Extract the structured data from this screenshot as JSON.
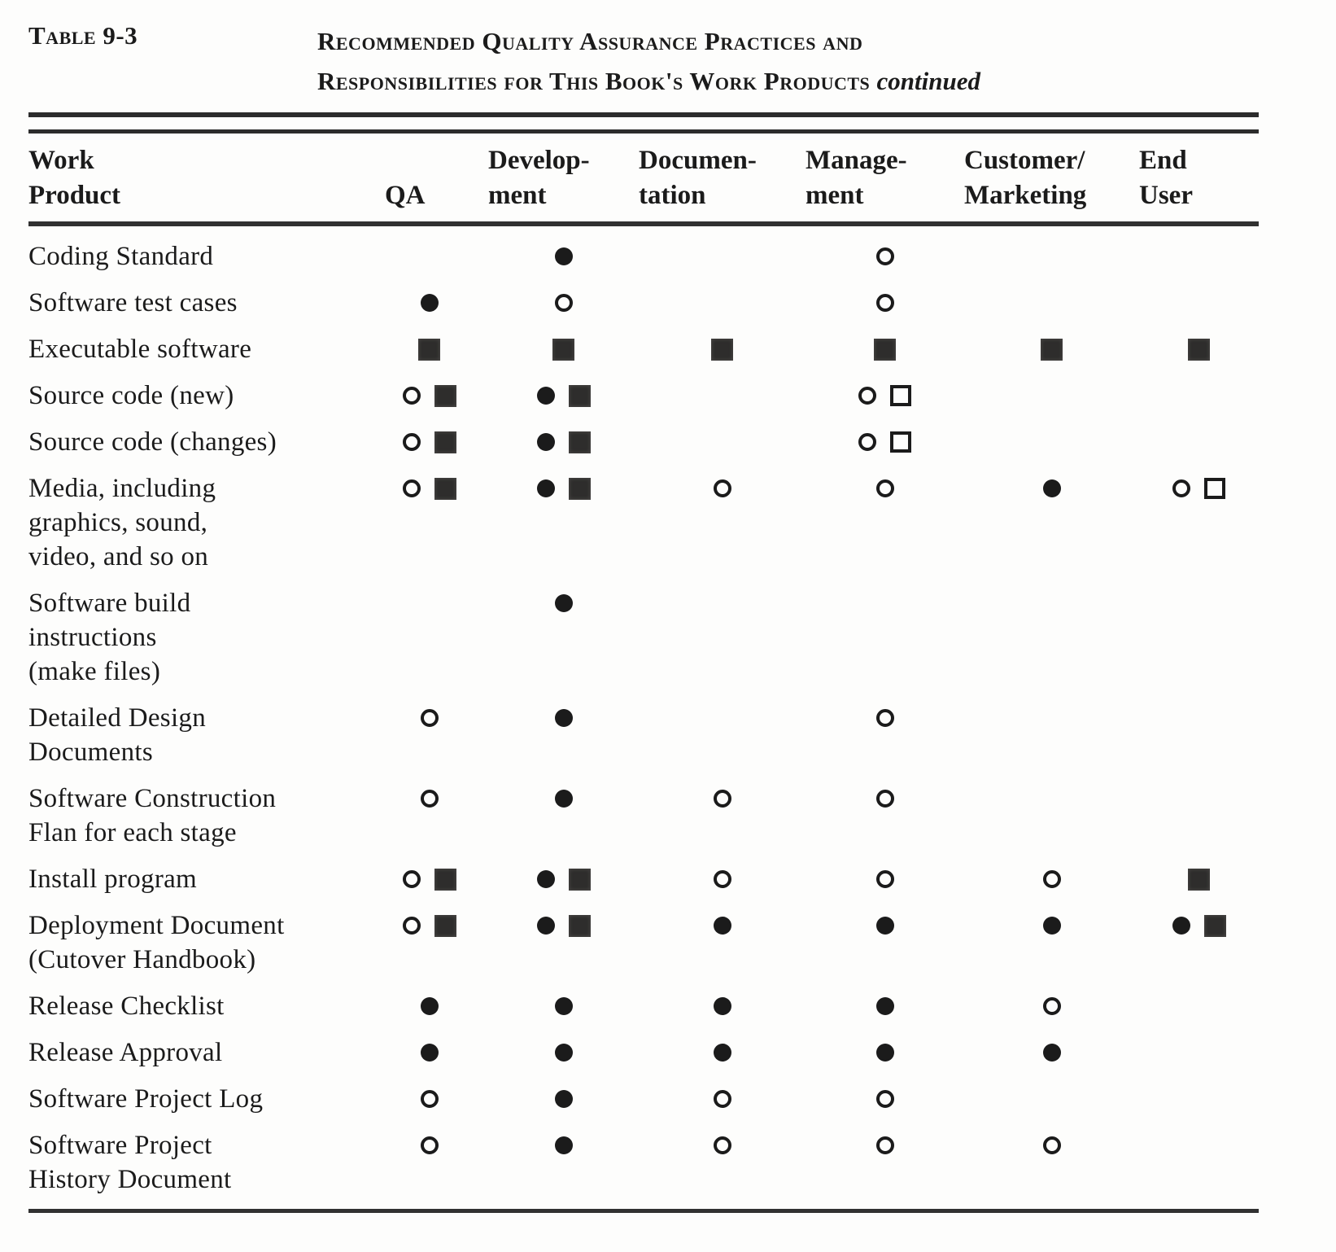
{
  "colors": {
    "ink": "#1b1b1b",
    "paper": "#fdfdfc"
  },
  "caption": {
    "label": "Table 9-3",
    "title_line1": "Recommended Quality Assurance Practices and",
    "title_line2": "Responsibilities for This Book's Work Products",
    "continued": "continued"
  },
  "table": {
    "header_columns": [
      {
        "line1": "Work",
        "line2": "Product",
        "id": "work-product"
      },
      {
        "line1": "",
        "line2": "QA",
        "id": "qa"
      },
      {
        "line1": "Develop-",
        "line2": "ment",
        "id": "development"
      },
      {
        "line1": "Documen-",
        "line2": "tation",
        "id": "documentation"
      },
      {
        "line1": "Manage-",
        "line2": "ment",
        "id": "management"
      },
      {
        "line1": "Customer/",
        "line2": "Marketing",
        "id": "customer-marketing"
      },
      {
        "line1": "End",
        "line2": "User",
        "id": "end-user"
      }
    ],
    "symbol_glyphs": [
      "filled-circle",
      "open-circle",
      "filled-square",
      "open-square"
    ],
    "rows": [
      {
        "label_lines": [
          "Coding Standard"
        ],
        "cells": [
          [],
          [
            "filled-circle"
          ],
          [],
          [
            "open-circle"
          ],
          [],
          []
        ]
      },
      {
        "label_lines": [
          "Software test cases"
        ],
        "cells": [
          [
            "filled-circle"
          ],
          [
            "open-circle"
          ],
          [],
          [
            "open-circle"
          ],
          [],
          []
        ]
      },
      {
        "label_lines": [
          "Executable software"
        ],
        "cells": [
          [
            "filled-square"
          ],
          [
            "filled-square"
          ],
          [
            "filled-square"
          ],
          [
            "filled-square"
          ],
          [
            "filled-square"
          ],
          [
            "filled-square"
          ]
        ]
      },
      {
        "label_lines": [
          "Source code (new)"
        ],
        "cells": [
          [
            "open-circle",
            "filled-square"
          ],
          [
            "filled-circle",
            "filled-square"
          ],
          [],
          [
            "open-circle",
            "open-square"
          ],
          [],
          []
        ]
      },
      {
        "label_lines": [
          "Source code (changes)"
        ],
        "cells": [
          [
            "open-circle",
            "filled-square"
          ],
          [
            "filled-circle",
            "filled-square"
          ],
          [],
          [
            "open-circle",
            "open-square"
          ],
          [],
          []
        ]
      },
      {
        "label_lines": [
          "Media, including",
          "graphics, sound,",
          "video, and so on"
        ],
        "cells": [
          [
            "open-circle",
            "filled-square"
          ],
          [
            "filled-circle",
            "filled-square"
          ],
          [
            "open-circle"
          ],
          [
            "open-circle"
          ],
          [
            "filled-circle"
          ],
          [
            "open-circle",
            "open-square"
          ]
        ]
      },
      {
        "label_lines": [
          "Software  build",
          "instructions",
          "(make files)"
        ],
        "cells": [
          [],
          [
            "filled-circle"
          ],
          [],
          [],
          [],
          []
        ]
      },
      {
        "label_lines": [
          "Detailed Design",
          "Documents"
        ],
        "cells": [
          [
            "open-circle"
          ],
          [
            "filled-circle"
          ],
          [],
          [
            "open-circle"
          ],
          [],
          []
        ]
      },
      {
        "label_lines": [
          "Software  Construction",
          "Flan for each stage"
        ],
        "cells": [
          [
            "open-circle"
          ],
          [
            "filled-circle"
          ],
          [
            "open-circle"
          ],
          [
            "open-circle"
          ],
          [],
          []
        ]
      },
      {
        "label_lines": [
          "Install program"
        ],
        "cells": [
          [
            "open-circle",
            "filled-square"
          ],
          [
            "filled-circle",
            "filled-square"
          ],
          [
            "open-circle"
          ],
          [
            "open-circle"
          ],
          [
            "open-circle"
          ],
          [
            "filled-square"
          ]
        ]
      },
      {
        "label_lines": [
          "Deployment Document",
          "(Cutover  Handbook)"
        ],
        "cells": [
          [
            "open-circle",
            "filled-square"
          ],
          [
            "filled-circle",
            "filled-square"
          ],
          [
            "filled-circle"
          ],
          [
            "filled-circle"
          ],
          [
            "filled-circle"
          ],
          [
            "filled-circle",
            "filled-square"
          ]
        ]
      },
      {
        "label_lines": [
          "Release  Checklist"
        ],
        "cells": [
          [
            "filled-circle"
          ],
          [
            "filled-circle"
          ],
          [
            "filled-circle"
          ],
          [
            "filled-circle"
          ],
          [
            "open-circle"
          ],
          []
        ]
      },
      {
        "label_lines": [
          "Release  Approval"
        ],
        "cells": [
          [
            "filled-circle"
          ],
          [
            "filled-circle"
          ],
          [
            "filled-circle"
          ],
          [
            "filled-circle"
          ],
          [
            "filled-circle"
          ],
          []
        ]
      },
      {
        "label_lines": [
          "Software  Project Log"
        ],
        "cells": [
          [
            "open-circle"
          ],
          [
            "filled-circle"
          ],
          [
            "open-circle"
          ],
          [
            "open-circle"
          ],
          [],
          []
        ]
      },
      {
        "label_lines": [
          "Software  Project",
          "History Document"
        ],
        "cells": [
          [
            "open-circle"
          ],
          [
            "filled-circle"
          ],
          [
            "open-circle"
          ],
          [
            "open-circle"
          ],
          [
            "open-circle"
          ],
          []
        ]
      }
    ]
  }
}
